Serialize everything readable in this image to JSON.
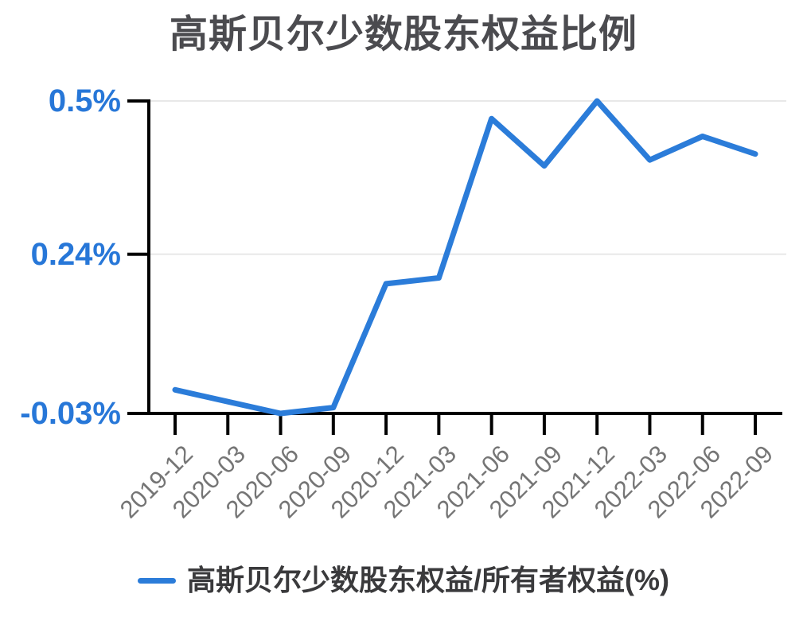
{
  "title": "高斯贝尔少数股东权益比例",
  "legend": {
    "label": "高斯贝尔少数股东权益/所有者权益(%)"
  },
  "colors": {
    "background": "#ffffff",
    "title_text": "#4b4b4f",
    "line": "#2b7cd9",
    "y_label": "#2777d8",
    "x_label": "#757575",
    "axis": "#000000",
    "grid": "#e8e8e8",
    "legend_text": "#3a3a3c"
  },
  "chart_data": {
    "type": "line",
    "title": "高斯贝尔少数股东权益比例",
    "categories": [
      "2019-12",
      "2020-03",
      "2020-06",
      "2020-09",
      "2020-12",
      "2021-03",
      "2021-06",
      "2021-09",
      "2021-12",
      "2022-03",
      "2022-06",
      "2022-09"
    ],
    "series": [
      {
        "name": "高斯贝尔少数股东权益/所有者权益(%)",
        "values": [
          0.01,
          -0.01,
          -0.03,
          -0.02,
          0.19,
          0.2,
          0.47,
          0.39,
          0.5,
          0.4,
          0.44,
          0.41
        ]
      }
    ],
    "unit": "%",
    "yticks": [
      {
        "label": "0.5%",
        "value": 0.5
      },
      {
        "label": "0.24%",
        "value": 0.24
      },
      {
        "label": "-0.03%",
        "value": -0.03
      }
    ],
    "ylim": [
      -0.03,
      0.5
    ],
    "xlabel": "",
    "ylabel": "",
    "grid": true,
    "legend_position": "bottom"
  }
}
